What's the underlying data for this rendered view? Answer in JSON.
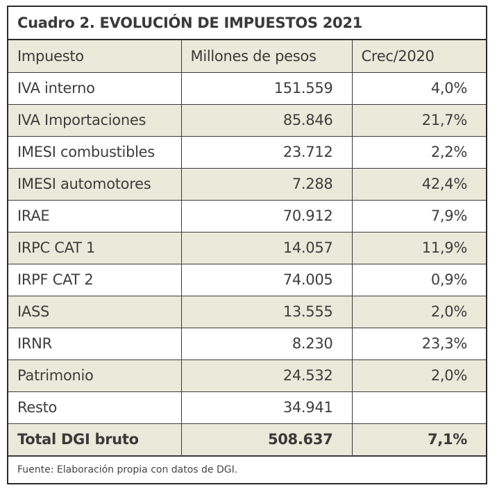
{
  "title": "Cuadro 2. EVOLUCIÓN DE IMPUESTOS 2021",
  "columns": [
    "Impuesto",
    "Millones de pesos",
    "Crec/2020"
  ],
  "rows": [
    {
      "impuesto": "IVA interno",
      "millones": "151.559",
      "crec": "4,0%"
    },
    {
      "impuesto": "IVA Importaciones",
      "millones": "85.846",
      "crec": "21,7%"
    },
    {
      "impuesto": "IMESI combustibles",
      "millones": "23.712",
      "crec": "2,2%"
    },
    {
      "impuesto": "IMESI automotores",
      "millones": "7.288",
      "crec": "42,4%"
    },
    {
      "impuesto": "IRAE",
      "millones": "70.912",
      "crec": "7,9%"
    },
    {
      "impuesto": "IRPC CAT 1",
      "millones": "14.057",
      "crec": "11,9%"
    },
    {
      "impuesto": "IRPF CAT 2",
      "millones": "74.005",
      "crec": "0,9%"
    },
    {
      "impuesto": "IASS",
      "millones": "13.555",
      "crec": "2,0%"
    },
    {
      "impuesto": "IRNR",
      "millones": "8.230",
      "crec": "23,3%"
    },
    {
      "impuesto": "Patrimonio",
      "millones": "24.532",
      "crec": "2,0%"
    },
    {
      "impuesto": "Resto",
      "millones": "34.941",
      "crec": ""
    }
  ],
  "total": {
    "impuesto": "Total DGI bruto",
    "millones": "508.637",
    "crec": "7,1%"
  },
  "source": "Fuente: Elaboración propia con datos de DGI.",
  "colors": {
    "tint_row": "#ebe9da",
    "border": "#2a2a2a",
    "text": "#3d3d3d"
  }
}
